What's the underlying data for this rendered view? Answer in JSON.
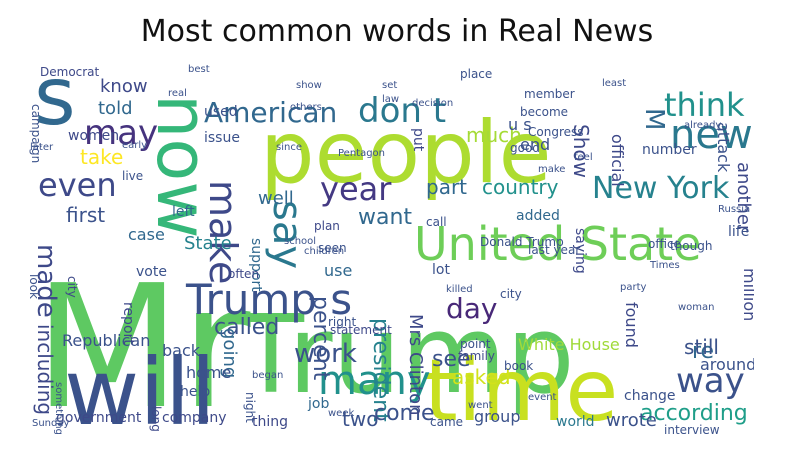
{
  "title": "Most common words in Real News",
  "words": [
    {
      "text": "Mr",
      "color": "#5ec962"
    },
    {
      "text": "Trump",
      "color": "#5ec962"
    },
    {
      "text": "people",
      "color": "#addc30"
    },
    {
      "text": "will",
      "color": "#3b528b"
    },
    {
      "text": "time",
      "color": "#c8e020"
    },
    {
      "text": "now",
      "color": "#35b779"
    },
    {
      "text": "s",
      "color": "#31688e"
    },
    {
      "text": "United State",
      "color": "#6ece58"
    },
    {
      "text": "Trump s",
      "color": "#3b528b"
    },
    {
      "text": "many",
      "color": "#21918c"
    },
    {
      "text": "say",
      "color": "#2a788e"
    },
    {
      "text": "make",
      "color": "#3e4989"
    },
    {
      "text": "year",
      "color": "#443983"
    },
    {
      "text": "even",
      "color": "#3e4989"
    },
    {
      "text": "American",
      "color": "#31688e"
    },
    {
      "text": "don t",
      "color": "#2a788e"
    },
    {
      "text": "new",
      "color": "#2a788e"
    },
    {
      "text": "think",
      "color": "#21918c"
    },
    {
      "text": "New York",
      "color": "#26828e"
    },
    {
      "text": "way",
      "color": "#3b528b"
    },
    {
      "text": "may",
      "color": "#46337e"
    },
    {
      "text": "day",
      "color": "#482878"
    },
    {
      "text": "work",
      "color": "#3b528b"
    },
    {
      "text": "made",
      "color": "#3e4989"
    },
    {
      "text": "percent",
      "color": "#3b528b"
    },
    {
      "text": "president",
      "color": "#26828e"
    },
    {
      "text": "called",
      "color": "#3b528b"
    },
    {
      "text": "much",
      "color": "#a5db36"
    },
    {
      "text": "Show",
      "color": "#3e4989"
    },
    {
      "text": "M",
      "color": "#31688e"
    },
    {
      "text": "country",
      "color": "#21918c"
    },
    {
      "text": "part",
      "color": "#31688e"
    },
    {
      "text": "want",
      "color": "#31688e"
    },
    {
      "text": "well",
      "color": "#31688e"
    },
    {
      "text": "State",
      "color": "#26828e"
    },
    {
      "text": "re",
      "color": "#31688e"
    },
    {
      "text": "according",
      "color": "#1f9e89"
    },
    {
      "text": "see",
      "color": "#3b528b"
    },
    {
      "text": "come",
      "color": "#3b528b"
    },
    {
      "text": "two",
      "color": "#3b528b"
    },
    {
      "text": "still",
      "color": "#3b528b"
    },
    {
      "text": "asked",
      "color": "#d2e21b"
    },
    {
      "text": "going",
      "color": "#31688e"
    },
    {
      "text": "including",
      "color": "#3e4989"
    },
    {
      "text": "first",
      "color": "#3b528b"
    },
    {
      "text": "take",
      "color": "#fde725"
    },
    {
      "text": "told",
      "color": "#31688e"
    },
    {
      "text": "know",
      "color": "#3e4989"
    },
    {
      "text": "Republican",
      "color": "#3b528b"
    },
    {
      "text": "back",
      "color": "#3b528b"
    },
    {
      "text": "home",
      "color": "#3b528b"
    },
    {
      "text": "White House",
      "color": "#a0da39"
    },
    {
      "text": "Mrs Clinton",
      "color": "#3e4989"
    },
    {
      "text": "government",
      "color": "#3e4989"
    },
    {
      "text": "company",
      "color": "#3e4989"
    },
    {
      "text": "world",
      "color": "#2a788e"
    },
    {
      "text": "wrote",
      "color": "#3b528b"
    },
    {
      "text": "group",
      "color": "#3b528b"
    },
    {
      "text": "job",
      "color": "#31688e"
    },
    {
      "text": "thing",
      "color": "#3e4989"
    },
    {
      "text": "case",
      "color": "#31688e"
    },
    {
      "text": "left",
      "color": "#31688e"
    },
    {
      "text": "another",
      "color": "#3e4989"
    },
    {
      "text": "attack",
      "color": "#3b528b"
    },
    {
      "text": "official",
      "color": "#3e4989"
    },
    {
      "text": "end",
      "color": "#3b528b"
    },
    {
      "text": "u s",
      "color": "#3b528b"
    },
    {
      "text": "around",
      "color": "#3b528b"
    },
    {
      "text": "found",
      "color": "#3e4989"
    },
    {
      "text": "million",
      "color": "#3e4989"
    },
    {
      "text": "life",
      "color": "#3b528b"
    },
    {
      "text": "support",
      "color": "#31688e"
    },
    {
      "text": "report",
      "color": "#3e4989"
    },
    {
      "text": "use",
      "color": "#31688e"
    },
    {
      "text": "added",
      "color": "#31688e"
    },
    {
      "text": "used",
      "color": "#3b528b"
    },
    {
      "text": "women",
      "color": "#3e4989"
    },
    {
      "text": "Democrat",
      "color": "#3e4989"
    },
    {
      "text": "vote",
      "color": "#3b528b"
    },
    {
      "text": "help",
      "color": "#3b528b"
    },
    {
      "text": "change",
      "color": "#3b528b"
    },
    {
      "text": "campaign",
      "color": "#3b528b"
    },
    {
      "text": "city",
      "color": "#3e4989"
    },
    {
      "text": "number",
      "color": "#3b528b"
    },
    {
      "text": "family",
      "color": "#3e4989"
    },
    {
      "text": "issue",
      "color": "#3b528b"
    },
    {
      "text": "statement",
      "color": "#3e4989"
    },
    {
      "text": "interview",
      "color": "#3b528b"
    },
    {
      "text": "member",
      "color": "#3b528b"
    },
    {
      "text": "night",
      "color": "#3b528b"
    },
    {
      "text": "long",
      "color": "#3e4989"
    },
    {
      "text": "often",
      "color": "#3e4989"
    },
    {
      "text": "lot",
      "color": "#3b528b"
    },
    {
      "text": "good",
      "color": "#3b528b"
    },
    {
      "text": "put",
      "color": "#3e4989"
    },
    {
      "text": "call",
      "color": "#3b528b"
    },
    {
      "text": "point",
      "color": "#3b528b"
    },
    {
      "text": "plan",
      "color": "#3e4989"
    },
    {
      "text": "live",
      "color": "#3b528b"
    },
    {
      "text": "look",
      "color": "#3b528b"
    },
    {
      "text": "saying",
      "color": "#3e4989"
    },
    {
      "text": "last year",
      "color": "#3b528b"
    },
    {
      "text": "right",
      "color": "#3b528b"
    },
    {
      "text": "came",
      "color": "#3b528b"
    },
    {
      "text": "book",
      "color": "#3b528b"
    },
    {
      "text": "become",
      "color": "#3b528b"
    },
    {
      "text": "seen",
      "color": "#3b528b"
    },
    {
      "text": "city",
      "color": "#3b528b"
    },
    {
      "text": "place",
      "color": "#3b528b"
    },
    {
      "text": "Congress",
      "color": "#3b528b"
    },
    {
      "text": "school",
      "color": "#3b528b"
    },
    {
      "text": "office",
      "color": "#3b528b"
    },
    {
      "text": "though",
      "color": "#3b528b"
    },
    {
      "text": "children",
      "color": "#3b528b"
    },
    {
      "text": "Donald Trump",
      "color": "#3b528b"
    },
    {
      "text": "least",
      "color": "#3b528b"
    },
    {
      "text": "others",
      "color": "#3b528b"
    },
    {
      "text": "law",
      "color": "#3b528b"
    },
    {
      "text": "early",
      "color": "#3b528b"
    },
    {
      "text": "later",
      "color": "#3b528b"
    },
    {
      "text": "decision",
      "color": "#3b528b"
    },
    {
      "text": "party",
      "color": "#3b528b"
    },
    {
      "text": "set",
      "color": "#3b528b"
    },
    {
      "text": "woman",
      "color": "#3b528b"
    },
    {
      "text": "Pentagon",
      "color": "#3b528b"
    },
    {
      "text": "Russia",
      "color": "#3b528b"
    },
    {
      "text": "already",
      "color": "#3b528b"
    },
    {
      "text": "Sunday",
      "color": "#3b528b"
    },
    {
      "text": "something",
      "color": "#3b528b"
    },
    {
      "text": "week",
      "color": "#3b528b"
    },
    {
      "text": "since",
      "color": "#3b528b"
    },
    {
      "text": "real",
      "color": "#3b528b"
    },
    {
      "text": "show",
      "color": "#3b528b"
    },
    {
      "text": "feel",
      "color": "#3b528b"
    },
    {
      "text": "make",
      "color": "#3b528b"
    },
    {
      "text": "killed",
      "color": "#3b528b"
    },
    {
      "text": "event",
      "color": "#3b528b"
    },
    {
      "text": "went",
      "color": "#3b528b"
    },
    {
      "text": "began",
      "color": "#3b528b"
    },
    {
      "text": "best",
      "color": "#3b528b"
    },
    {
      "text": "Times",
      "color": "#3b528b"
    }
  ]
}
